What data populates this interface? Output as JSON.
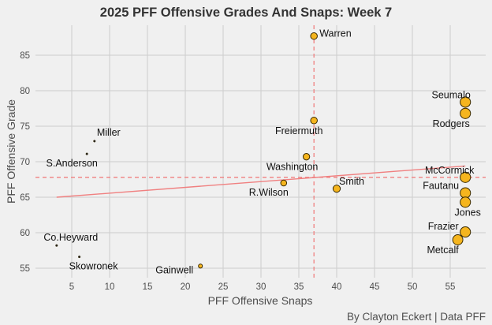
{
  "chart_data": {
    "type": "scatter",
    "title": "2025 PFF Offensive Grades And Snaps: Week 7",
    "xlabel": "PFF Offensive Snaps",
    "ylabel": "PFF Offensive Grade",
    "caption": "By Clayton Eckert | Data PFF",
    "xlim": [
      0.5,
      59.5
    ],
    "ylim": [
      53.8,
      89
    ],
    "xticks": [
      5,
      10,
      15,
      20,
      25,
      30,
      35,
      40,
      45,
      50,
      55
    ],
    "yticks": [
      55,
      60,
      65,
      70,
      75,
      80,
      85
    ],
    "grid": true,
    "point_color": "#f5b51e",
    "reference_color": "#f08080",
    "mean_snaps": 37,
    "mean_grade": 67.8,
    "trend_line": {
      "x": [
        3,
        57
      ],
      "y": [
        65.0,
        69.4
      ]
    },
    "points": [
      {
        "name": "Warren",
        "snaps": 37,
        "grade": 87.7
      },
      {
        "name": "Seumalo",
        "snaps": 57,
        "grade": 78.4
      },
      {
        "name": "Rodgers",
        "snaps": 57,
        "grade": 76.8
      },
      {
        "name": "Freiermuth",
        "snaps": 37,
        "grade": 75.8
      },
      {
        "name": "Washington",
        "snaps": 36,
        "grade": 70.7
      },
      {
        "name": "R.Wilson",
        "snaps": 33,
        "grade": 67.0
      },
      {
        "name": "Smith",
        "snaps": 40,
        "grade": 66.2
      },
      {
        "name": "McCormick",
        "snaps": 57,
        "grade": 67.8
      },
      {
        "name": "Fautanu",
        "snaps": 57,
        "grade": 65.6
      },
      {
        "name": "Jones",
        "snaps": 57,
        "grade": 64.3
      },
      {
        "name": "Frazier",
        "snaps": 57,
        "grade": 60.1
      },
      {
        "name": "Metcalf",
        "snaps": 56,
        "grade": 59.0
      },
      {
        "name": "Gainwell",
        "snaps": 22,
        "grade": 55.3
      },
      {
        "name": "Miller",
        "snaps": 8,
        "grade": 72.9
      },
      {
        "name": "S.Anderson",
        "snaps": 7,
        "grade": 71.1
      },
      {
        "name": "Co.Heyward",
        "snaps": 3,
        "grade": 58.2
      },
      {
        "name": "Skowronek",
        "snaps": 6,
        "grade": 56.6
      }
    ]
  }
}
